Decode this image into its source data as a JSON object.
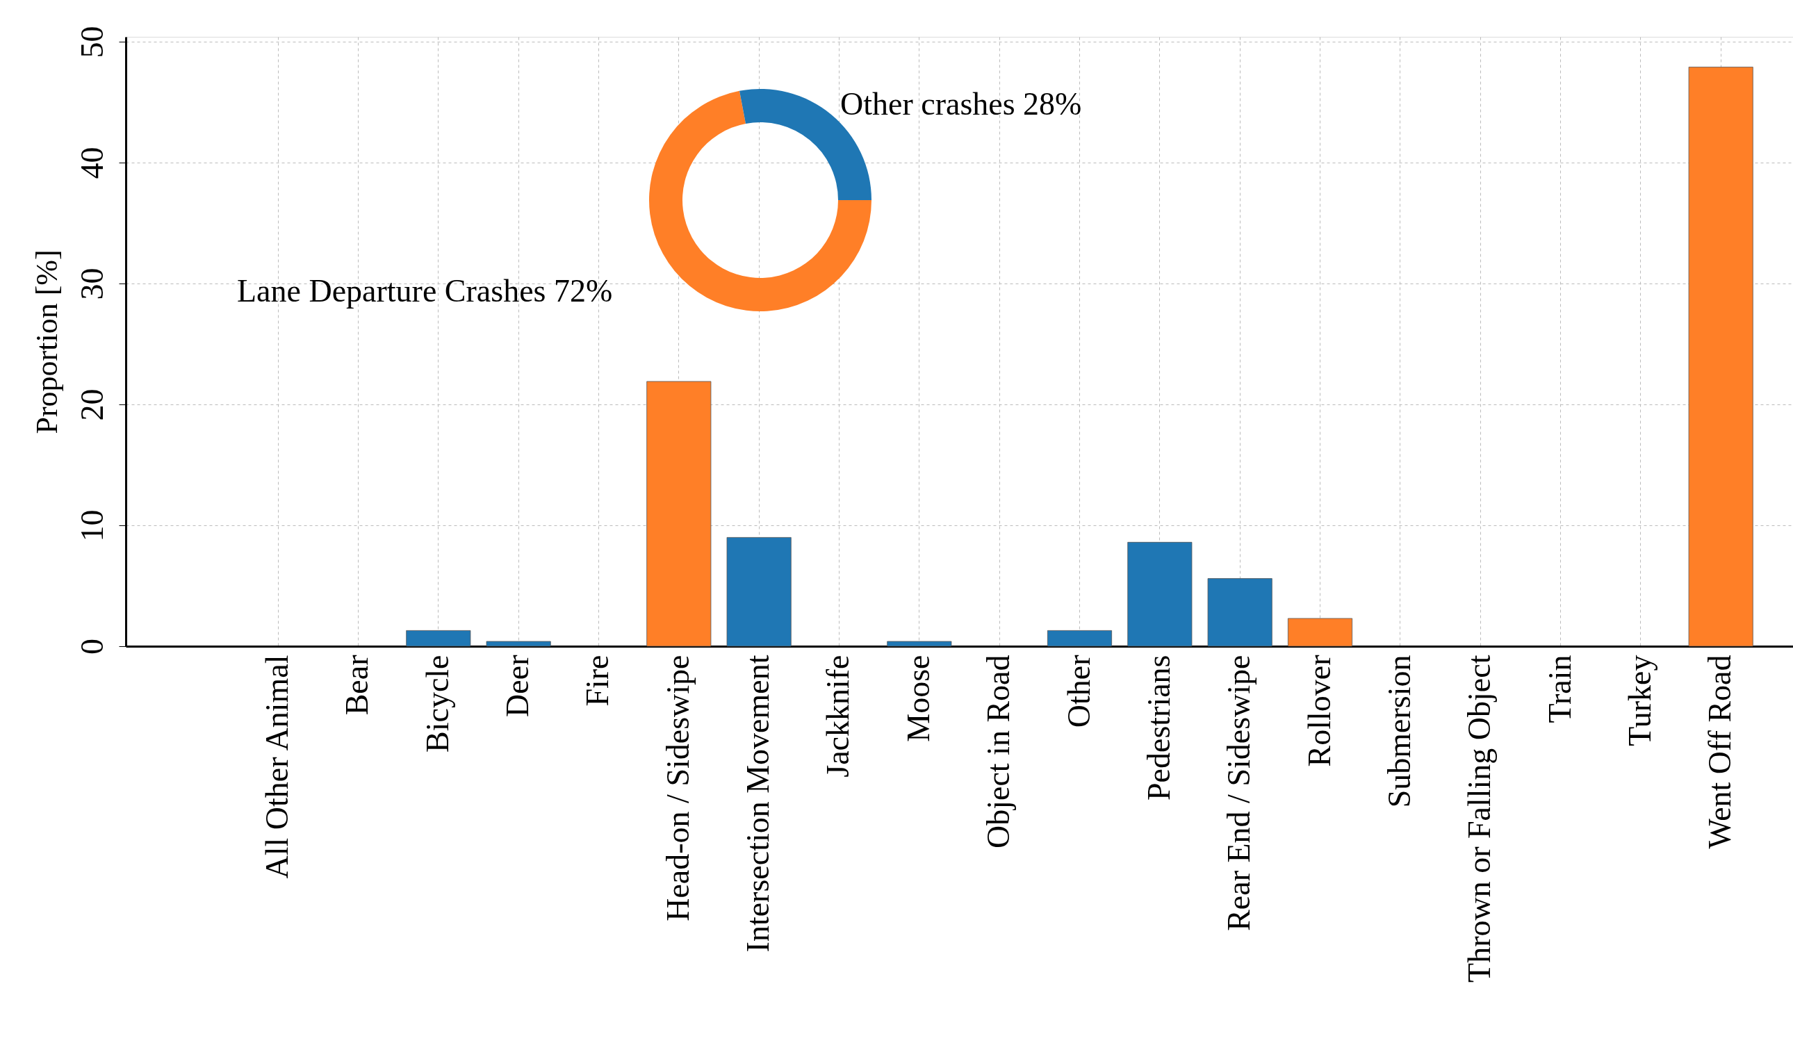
{
  "chart_data": [
    {
      "type": "bar",
      "ylabel": "Proportion [%]",
      "categories": [
        "All Other Animal",
        "Bear",
        "Bicycle",
        "Deer",
        "Fire",
        "Head-on / Sideswipe",
        "Intersection Movement",
        "Jackknife",
        "Moose",
        "Object in Road",
        "Other",
        "Pedestrians",
        "Rear End / Sideswipe",
        "Rollover",
        "Submersion",
        "Thrown or Falling Object",
        "Train",
        "Turkey",
        "Went Off Road"
      ],
      "values": [
        0,
        0,
        1.3,
        0.4,
        0,
        21.9,
        9.0,
        0,
        0.4,
        0,
        1.3,
        8.6,
        5.6,
        2.3,
        0,
        0,
        0,
        0,
        47.9
      ],
      "colors": [
        "#1f77b4",
        "#1f77b4",
        "#1f77b4",
        "#1f77b4",
        "#1f77b4",
        "#ff7f27",
        "#1f77b4",
        "#1f77b4",
        "#1f77b4",
        "#1f77b4",
        "#1f77b4",
        "#1f77b4",
        "#1f77b4",
        "#ff7f27",
        "#1f77b4",
        "#1f77b4",
        "#1f77b4",
        "#1f77b4",
        "#ff7f27"
      ],
      "ylim": [
        0,
        50.4
      ],
      "yticks": [
        0,
        10,
        20,
        30,
        40,
        50
      ],
      "grid": true
    },
    {
      "type": "donut",
      "categories": [
        "Lane Departure Crashes",
        "Other crashes"
      ],
      "values": [
        72,
        28
      ],
      "colors": [
        "#ff7f27",
        "#1f77b4"
      ],
      "value_labels": [
        "72%",
        "28%"
      ]
    }
  ]
}
